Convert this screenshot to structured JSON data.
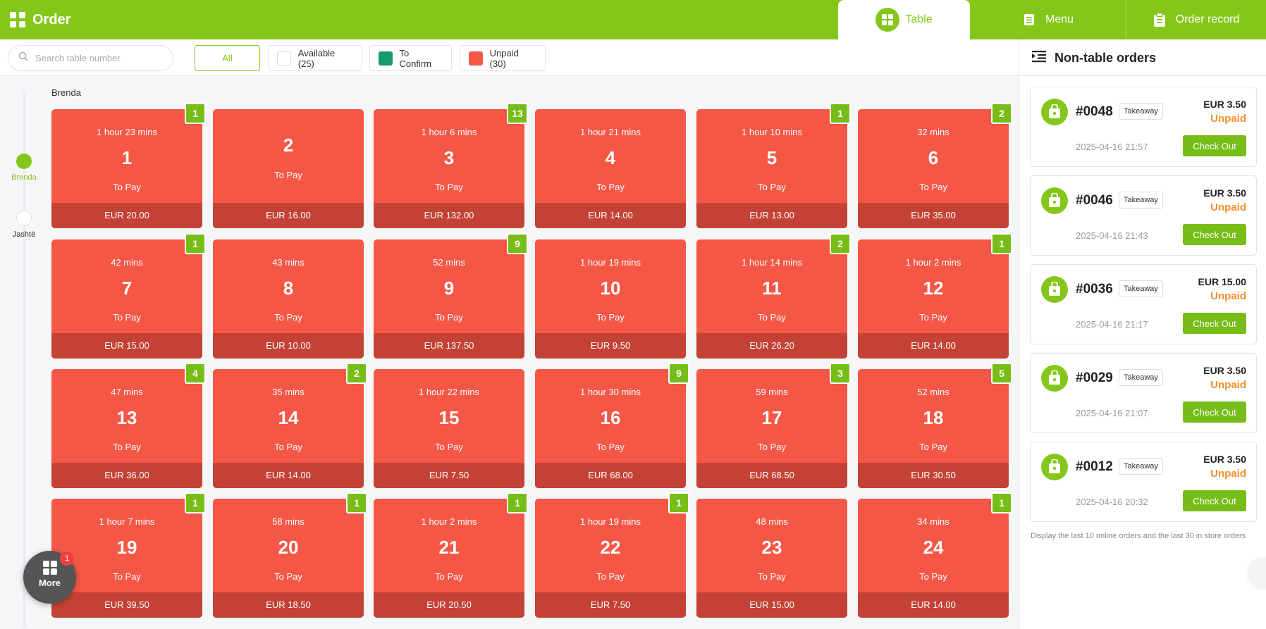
{
  "header": {
    "title": "Order",
    "tabs": [
      {
        "label": "Table",
        "active": true
      },
      {
        "label": "Menu",
        "active": false
      },
      {
        "label": "Order record",
        "active": false
      }
    ]
  },
  "colors": {
    "brand": "#84c71a",
    "unpaid": "#f55747",
    "to_confirm": "#17996f",
    "badge": "#77bd17",
    "status_unpaid": "#f5902a"
  },
  "search": {
    "placeholder": "Search table number"
  },
  "filters": [
    {
      "label": "All",
      "active": true
    },
    {
      "label": "Available (25)",
      "swatch": "#ffffff"
    },
    {
      "label": "To Confirm",
      "swatch": "#17996f"
    },
    {
      "label": "Unpaid (30)",
      "swatch": "#f55747"
    }
  ],
  "areas": [
    {
      "label": "Brenda",
      "active": true
    },
    {
      "label": "Jashtë",
      "active": false
    }
  ],
  "area_title": "Brenda",
  "tables": [
    {
      "number": "1",
      "time": "1 hour 23 mins",
      "status": "To Pay",
      "amount": "EUR 20.00",
      "badge": "1"
    },
    {
      "number": "2",
      "time": "",
      "status": "To Pay",
      "amount": "EUR 16.00",
      "badge": ""
    },
    {
      "number": "3",
      "time": "1 hour 6 mins",
      "status": "To Pay",
      "amount": "EUR 132.00",
      "badge": "13"
    },
    {
      "number": "4",
      "time": "1 hour 21 mins",
      "status": "To Pay",
      "amount": "EUR 14.00",
      "badge": ""
    },
    {
      "number": "5",
      "time": "1 hour 10 mins",
      "status": "To Pay",
      "amount": "EUR 13.00",
      "badge": "1"
    },
    {
      "number": "6",
      "time": "32 mins",
      "status": "To Pay",
      "amount": "EUR 35.00",
      "badge": "2"
    },
    {
      "number": "7",
      "time": "42 mins",
      "status": "To Pay",
      "amount": "EUR 15.00",
      "badge": "1"
    },
    {
      "number": "8",
      "time": "43 mins",
      "status": "To Pay",
      "amount": "EUR 10.00",
      "badge": ""
    },
    {
      "number": "9",
      "time": "52 mins",
      "status": "To Pay",
      "amount": "EUR 137.50",
      "badge": "9"
    },
    {
      "number": "10",
      "time": "1 hour 19 mins",
      "status": "To Pay",
      "amount": "EUR 9.50",
      "badge": ""
    },
    {
      "number": "11",
      "time": "1 hour 14 mins",
      "status": "To Pay",
      "amount": "EUR 26.20",
      "badge": "2"
    },
    {
      "number": "12",
      "time": "1 hour 2 mins",
      "status": "To Pay",
      "amount": "EUR 14.00",
      "badge": "1"
    },
    {
      "number": "13",
      "time": "47 mins",
      "status": "To Pay",
      "amount": "EUR 36.00",
      "badge": "4"
    },
    {
      "number": "14",
      "time": "35 mins",
      "status": "To Pay",
      "amount": "EUR 14.00",
      "badge": "2"
    },
    {
      "number": "15",
      "time": "1 hour 22 mins",
      "status": "To Pay",
      "amount": "EUR 7.50",
      "badge": ""
    },
    {
      "number": "16",
      "time": "1 hour 30 mins",
      "status": "To Pay",
      "amount": "EUR 68.00",
      "badge": "9"
    },
    {
      "number": "17",
      "time": "59 mins",
      "status": "To Pay",
      "amount": "EUR 68.50",
      "badge": "3"
    },
    {
      "number": "18",
      "time": "52 mins",
      "status": "To Pay",
      "amount": "EUR 30.50",
      "badge": "5"
    },
    {
      "number": "19",
      "time": "1 hour 7 mins",
      "status": "To Pay",
      "amount": "EUR 39.50",
      "badge": "1"
    },
    {
      "number": "20",
      "time": "58 mins",
      "status": "To Pay",
      "amount": "EUR 18.50",
      "badge": "1"
    },
    {
      "number": "21",
      "time": "1 hour 2 mins",
      "status": "To Pay",
      "amount": "EUR 20.50",
      "badge": "1"
    },
    {
      "number": "22",
      "time": "1 hour 19 mins",
      "status": "To Pay",
      "amount": "EUR 7.50",
      "badge": "1"
    },
    {
      "number": "23",
      "time": "48 mins",
      "status": "To Pay",
      "amount": "EUR 15.00",
      "badge": ""
    },
    {
      "number": "24",
      "time": "34 mins",
      "status": "To Pay",
      "amount": "EUR 14.00",
      "badge": "1"
    }
  ],
  "more": {
    "label": "More",
    "badge": "1"
  },
  "non_table": {
    "title": "Non-table orders",
    "orders": [
      {
        "number": "#0048",
        "type": "Takeaway",
        "amount": "EUR 3.50",
        "status": "Unpaid",
        "time": "2025-04-16 21:57",
        "action": "Check Out"
      },
      {
        "number": "#0046",
        "type": "Takeaway",
        "amount": "EUR 3.50",
        "status": "Unpaid",
        "time": "2025-04-16 21:43",
        "action": "Check Out"
      },
      {
        "number": "#0036",
        "type": "Takeaway",
        "amount": "EUR 15.00",
        "status": "Unpaid",
        "time": "2025-04-16 21:17",
        "action": "Check Out"
      },
      {
        "number": "#0029",
        "type": "Takeaway",
        "amount": "EUR 3.50",
        "status": "Unpaid",
        "time": "2025-04-16 21:07",
        "action": "Check Out"
      },
      {
        "number": "#0012",
        "type": "Takeaway",
        "amount": "EUR 3.50",
        "status": "Unpaid",
        "time": "2025-04-16 20:32",
        "action": "Check Out"
      }
    ],
    "note": "Display the last 10 online orders and the last 30 in store orders"
  }
}
